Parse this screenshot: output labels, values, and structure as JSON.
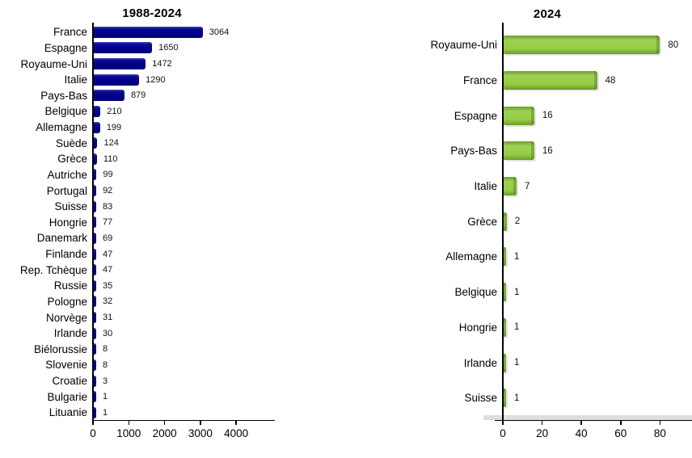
{
  "page": {
    "background": "#ffffff"
  },
  "chart_data": [
    {
      "type": "bar",
      "orientation": "horizontal",
      "title": "1988-2024",
      "bar_color": "#00008B",
      "categories": [
        "France",
        "Espagne",
        "Royaume-Uni",
        "Italie",
        "Pays-Bas",
        "Belgique",
        "Allemagne",
        "Suède",
        "Grèce",
        "Autriche",
        "Portugal",
        "Suisse",
        "Hongrie",
        "Danemark",
        "Finlande",
        "Rep. Tchèque",
        "Russie",
        "Pologne",
        "Norvège",
        "Irlande",
        "Biélorussie",
        "Slovenie",
        "Croatie",
        "Bulgarie",
        "Lituanie"
      ],
      "values": [
        3064,
        1650,
        1472,
        1290,
        879,
        210,
        199,
        124,
        110,
        99,
        92,
        83,
        77,
        69,
        47,
        47,
        35,
        32,
        31,
        30,
        8,
        8,
        3,
        1,
        1
      ],
      "x_ticks": [
        "0",
        "1000",
        "2000",
        "3000",
        "4000"
      ],
      "xlim": [
        0,
        5000
      ],
      "value_labels_shown": true,
      "grid": false,
      "legend": false
    },
    {
      "type": "bar",
      "orientation": "horizontal",
      "title": "2024",
      "bar_color": "#92C83E",
      "categories": [
        "Royaume-Uni",
        "France",
        "Espagne",
        "Pays-Bas",
        "Italie",
        "Grèce",
        "Allemagne",
        "Belgique",
        "Hongrie",
        "Irlande",
        "Suisse"
      ],
      "values": [
        80,
        48,
        16,
        16,
        7,
        2,
        1,
        1,
        1,
        1,
        1
      ],
      "x_ticks": [
        "0",
        "20",
        "40",
        "60",
        "80"
      ],
      "xlim": [
        0,
        96
      ],
      "value_labels_shown": true,
      "grid": false,
      "legend": false
    }
  ]
}
